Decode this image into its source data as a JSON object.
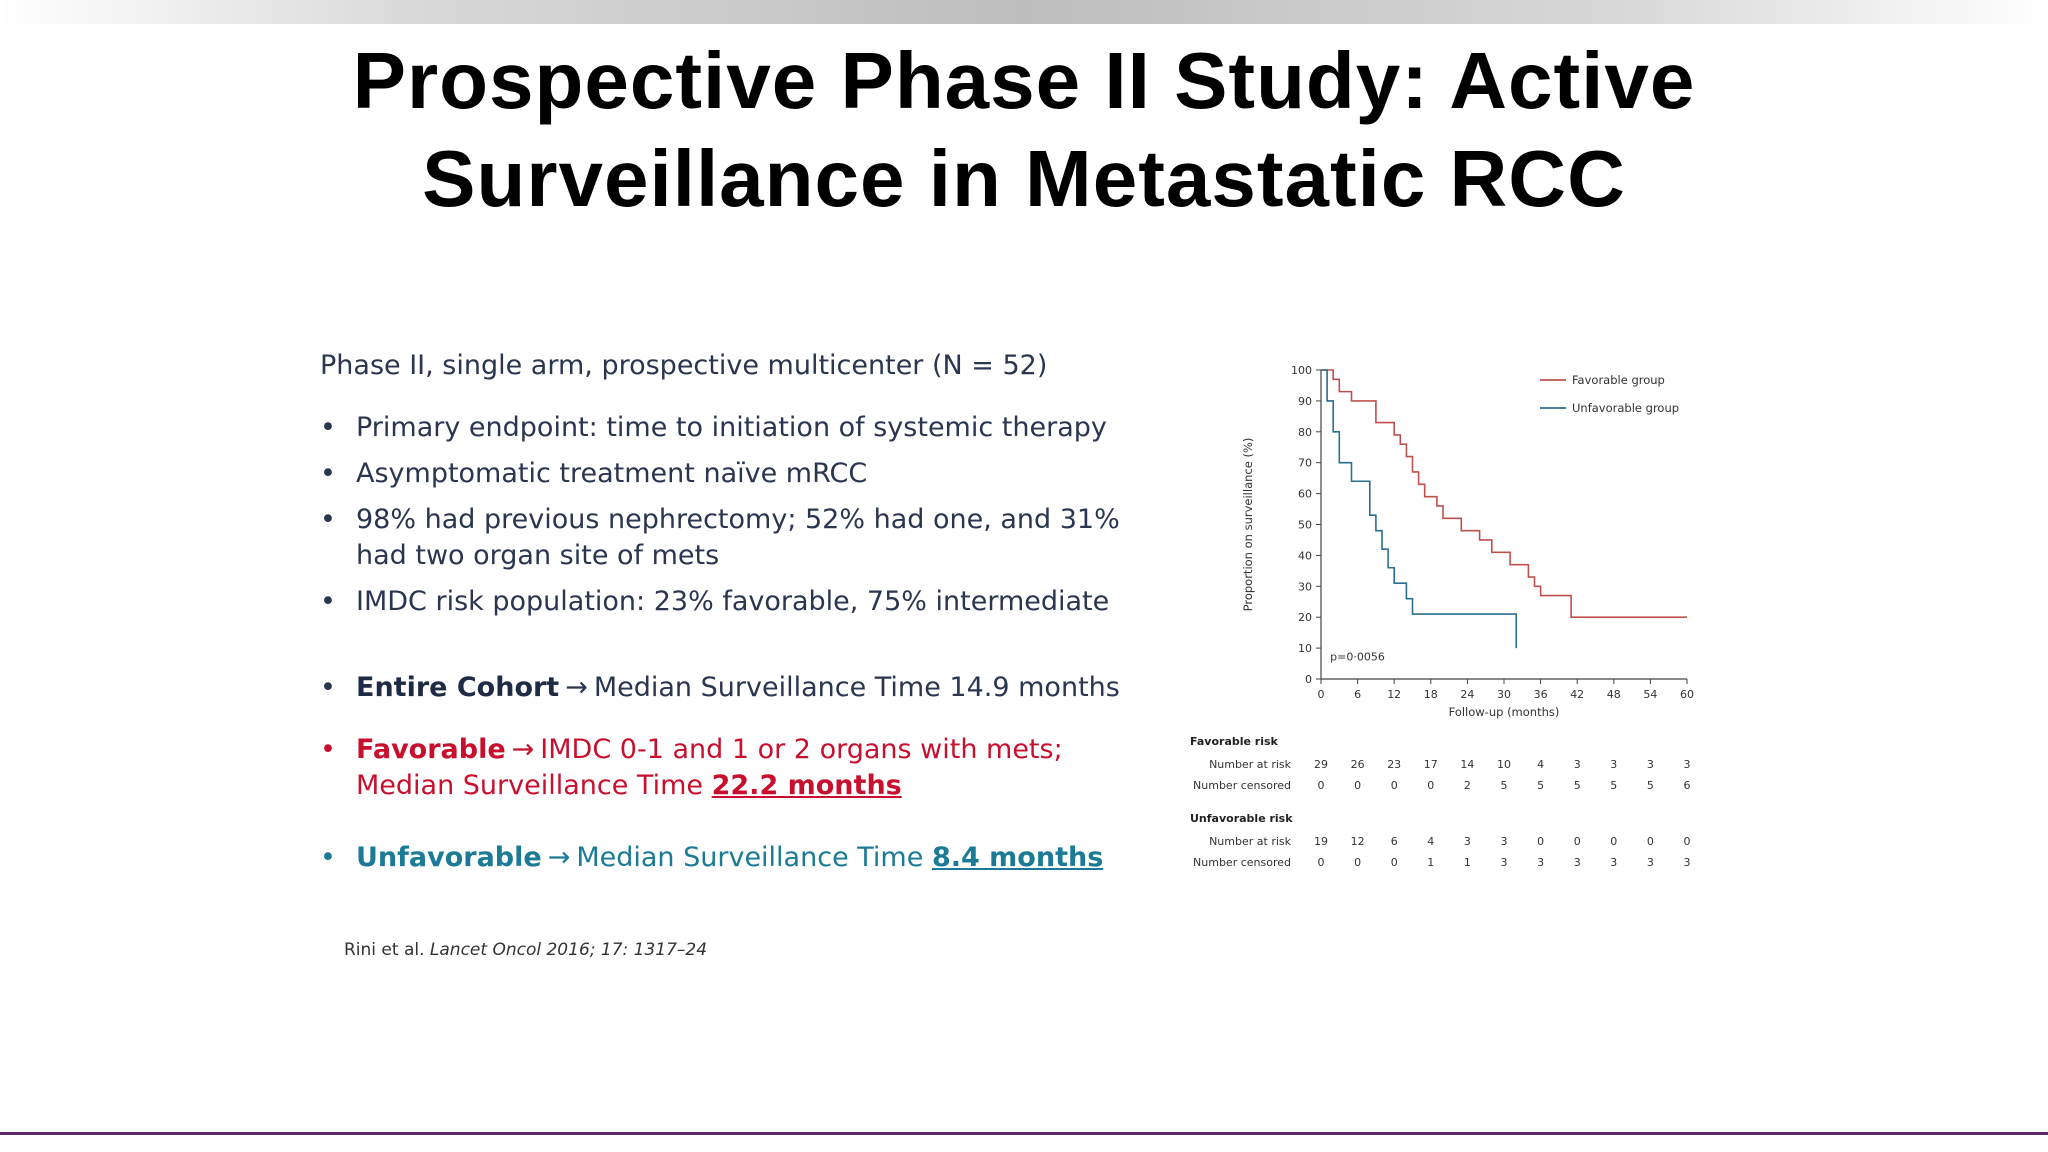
{
  "slide": {
    "title_line1": "Prospective Phase II Study: Active",
    "title_line2": "Surveillance in Metastatic RCC",
    "subhead": "Phase II, single arm, prospective multicenter (N = 52)",
    "bullets": [
      "Primary endpoint: time to initiation of systemic therapy",
      "Asymptomatic treatment naïve mRCC",
      "98% had previous nephrectomy; 52% had one, and 31% had two organ site of mets",
      "IMDC risk population: 23% favorable, 75% intermediate"
    ],
    "summary": {
      "entire_label": "Entire Cohort",
      "entire_text": "Median Surveillance Time 14.9 months",
      "favorable_label": "Favorable",
      "favorable_text": "IMDC 0-1 and 1 or 2 organs with mets; Median Surveillance Time",
      "favorable_value": "22.2 months",
      "unfavorable_label": "Unfavorable",
      "unfavorable_text": "Median Surveillance Time",
      "unfavorable_value": "8.4 months",
      "arrow": "→"
    },
    "citation_prefix": "Rini et al.",
    "citation_journal": "Lancet Oncol 2016; 17: 1317–24",
    "colors": {
      "favorable": "#c8102e",
      "unfavorable": "#1b7a95",
      "text": "#2b3550",
      "favorable_line": "#c0504d",
      "unfavorable_line": "#2a6f8f",
      "bottom_bar": "#5b2a6e"
    }
  },
  "chart_data": {
    "type": "line",
    "ylabel": "Proportion on surveillance (%)",
    "xlabel": "Follow-up (months)",
    "xlim": [
      0,
      60
    ],
    "ylim": [
      0,
      100
    ],
    "xticks": [
      0,
      6,
      12,
      18,
      24,
      30,
      36,
      42,
      48,
      54,
      60
    ],
    "yticks": [
      0,
      10,
      20,
      30,
      40,
      50,
      60,
      70,
      80,
      90,
      100
    ],
    "annotation": "p=0·0056",
    "legend_position": "top-right",
    "series": [
      {
        "name": "Favorable group",
        "color": "#c0504d",
        "steps": [
          [
            0,
            100
          ],
          [
            2,
            97
          ],
          [
            3,
            93
          ],
          [
            5,
            90
          ],
          [
            9,
            83
          ],
          [
            12,
            79
          ],
          [
            13,
            76
          ],
          [
            14,
            72
          ],
          [
            15,
            67
          ],
          [
            16,
            63
          ],
          [
            17,
            59
          ],
          [
            19,
            56
          ],
          [
            20,
            52
          ],
          [
            23,
            48
          ],
          [
            26,
            45
          ],
          [
            28,
            41
          ],
          [
            31,
            37
          ],
          [
            34,
            33
          ],
          [
            35,
            30
          ],
          [
            36,
            27
          ],
          [
            40,
            27
          ],
          [
            41,
            20
          ],
          [
            60,
            20
          ]
        ]
      },
      {
        "name": "Unfavorable group",
        "color": "#2a6f8f",
        "steps": [
          [
            0,
            100
          ],
          [
            1,
            90
          ],
          [
            2,
            80
          ],
          [
            3,
            70
          ],
          [
            5,
            64
          ],
          [
            8,
            53
          ],
          [
            9,
            48
          ],
          [
            10,
            42
          ],
          [
            11,
            36
          ],
          [
            12,
            31
          ],
          [
            14,
            26
          ],
          [
            15,
            21
          ],
          [
            32,
            21
          ],
          [
            32,
            10
          ]
        ]
      }
    ],
    "risk_table": {
      "groups": [
        {
          "title": "Favorable risk",
          "rows": [
            {
              "label": "Number at risk",
              "values": [
                "29",
                "26",
                "23",
                "17",
                "14",
                "10",
                "4",
                "3",
                "3",
                "3",
                "3"
              ]
            },
            {
              "label": "Number censored",
              "values": [
                "0",
                "0",
                "0",
                "0",
                "2",
                "5",
                "5",
                "5",
                "5",
                "5",
                "6"
              ]
            }
          ]
        },
        {
          "title": "Unfavorable risk",
          "rows": [
            {
              "label": "Number at risk",
              "values": [
                "19",
                "12",
                "6",
                "4",
                "3",
                "3",
                "0",
                "0",
                "0",
                "0",
                "0"
              ]
            },
            {
              "label": "Number censored",
              "values": [
                "0",
                "0",
                "0",
                "1",
                "1",
                "3",
                "3",
                "3",
                "3",
                "3",
                "3"
              ]
            }
          ]
        }
      ]
    }
  }
}
